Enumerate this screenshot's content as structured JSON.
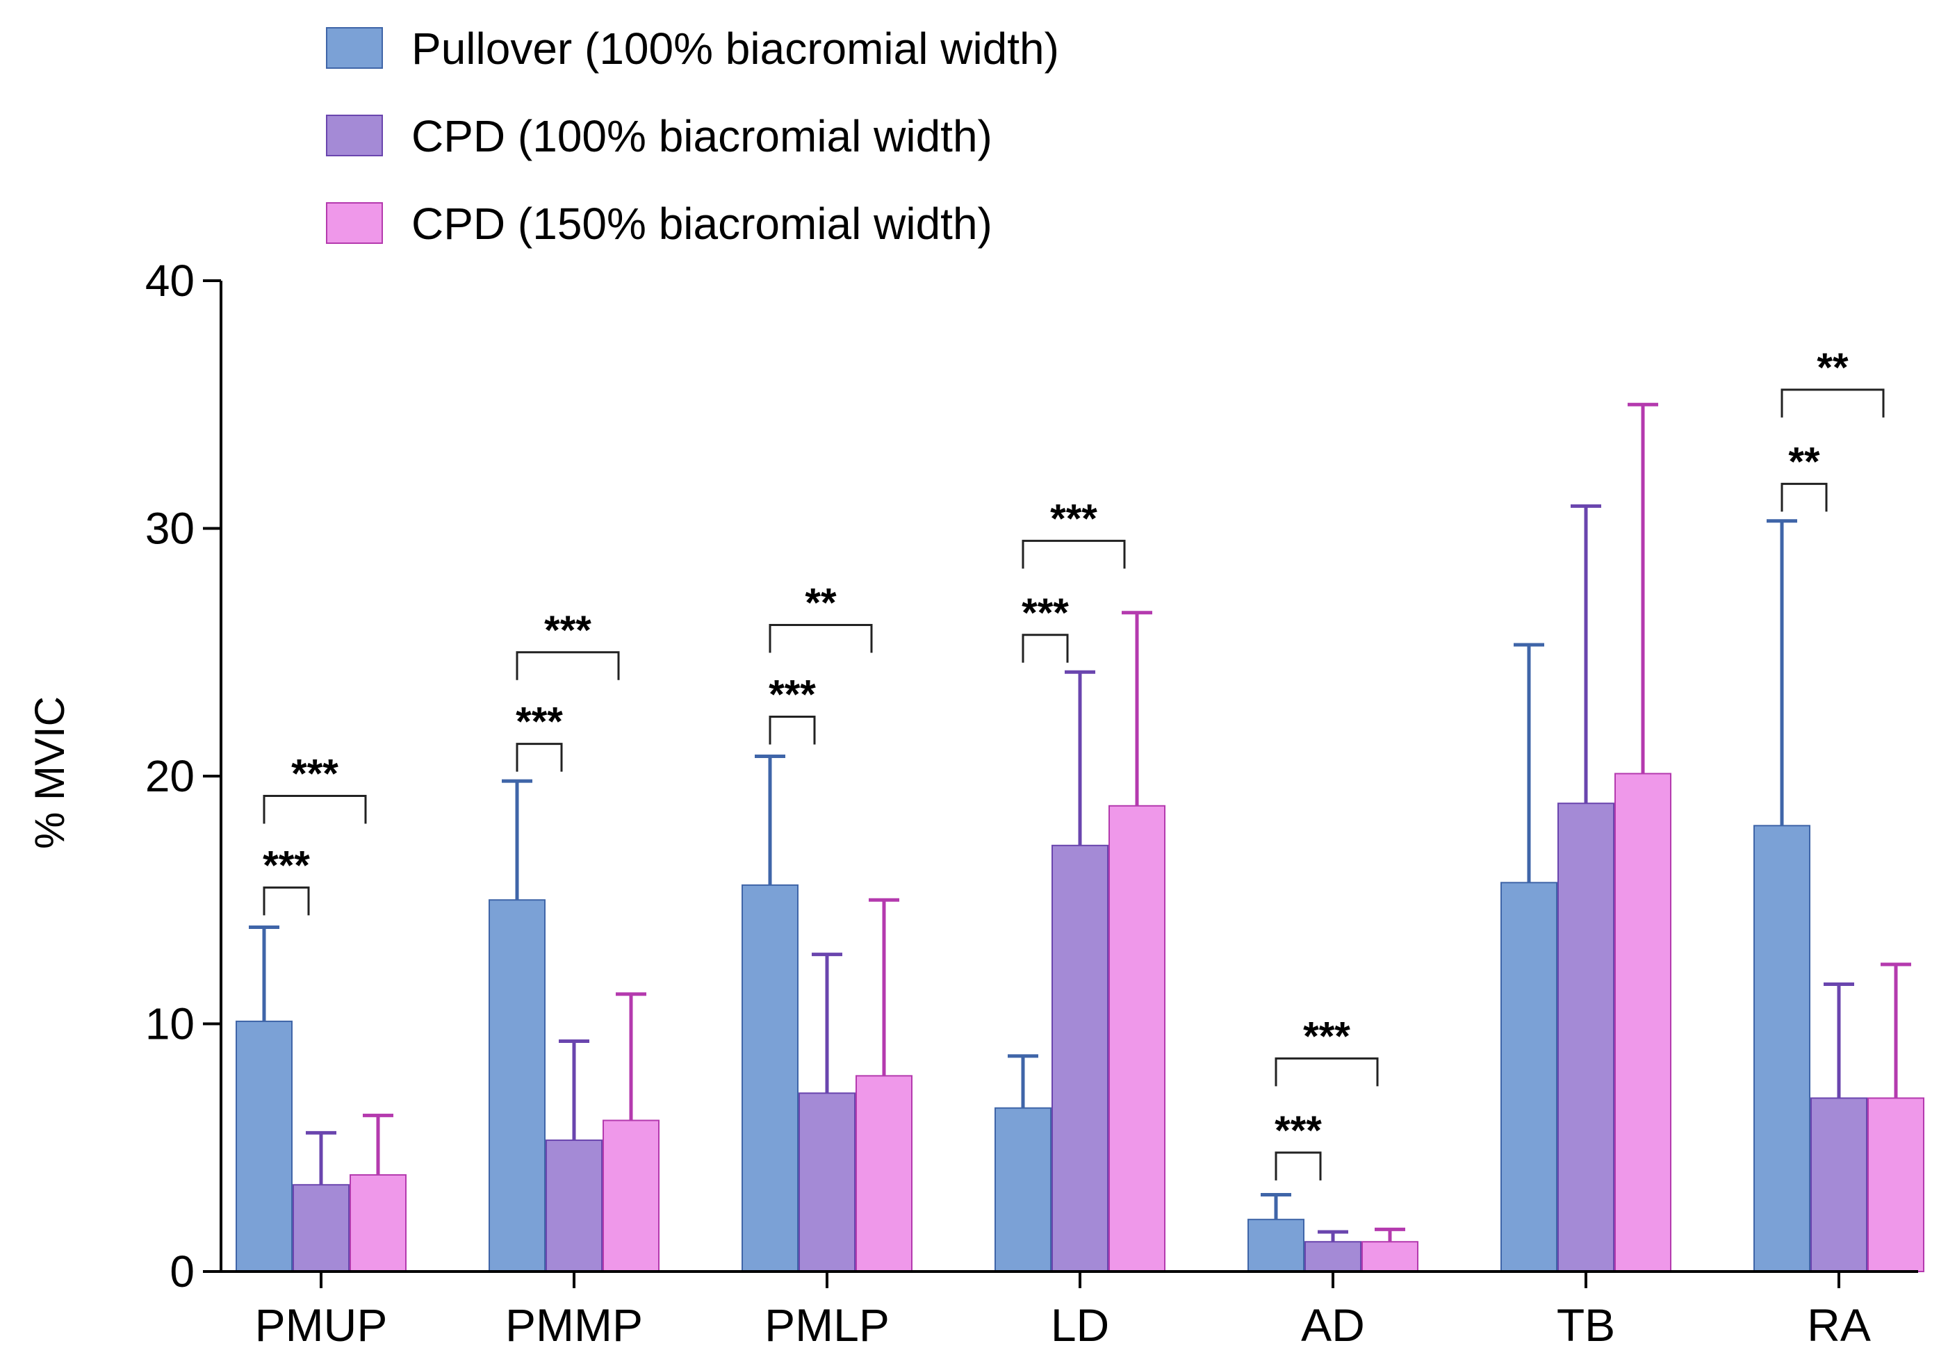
{
  "chart_data": {
    "type": "bar",
    "title": "",
    "xlabel": "",
    "ylabel": "% MVIC",
    "ylim": [
      0,
      40
    ],
    "yticks": [
      "0",
      "10",
      "20",
      "30",
      "40"
    ],
    "grid": false,
    "legend_position": "top-left",
    "categories": [
      "PMUP",
      "PMMP",
      "PMLP",
      "LD",
      "AD",
      "TB",
      "RA"
    ],
    "series": [
      {
        "name": "Pullover (100% biacromial width)",
        "color": "#7ba1d6",
        "edge_color": "#3f65a8",
        "values": [
          10.1,
          15.0,
          15.6,
          6.6,
          2.1,
          15.7,
          18.0
        ],
        "errors": [
          3.8,
          4.8,
          5.2,
          2.1,
          1.0,
          9.6,
          12.3
        ]
      },
      {
        "name": "CPD (100% biacromial width)",
        "color": "#a48ad6",
        "edge_color": "#6a45ae",
        "values": [
          3.5,
          5.3,
          7.2,
          17.2,
          1.2,
          18.9,
          7.0
        ],
        "errors": [
          2.1,
          4.0,
          5.6,
          7.0,
          0.4,
          12.0,
          4.6
        ]
      },
      {
        "name": "CPD (150% biacromial width)",
        "color": "#ef98ea",
        "edge_color": "#b43aae",
        "values": [
          3.9,
          6.1,
          7.9,
          18.8,
          1.2,
          20.1,
          7.0
        ],
        "errors": [
          2.4,
          5.1,
          7.1,
          7.8,
          0.5,
          14.9,
          5.4
        ]
      }
    ],
    "significance": [
      {
        "category": "PMUP",
        "pair": "pullover-cpd100",
        "label": "***",
        "level": 15.5
      },
      {
        "category": "PMUP",
        "pair": "pullover-cpd150",
        "label": "***",
        "level": 19.2
      },
      {
        "category": "PMMP",
        "pair": "pullover-cpd100",
        "label": "***",
        "level": 21.3
      },
      {
        "category": "PMMP",
        "pair": "pullover-cpd150",
        "label": "***",
        "level": 25.0
      },
      {
        "category": "PMLP",
        "pair": "pullover-cpd100",
        "label": "***",
        "level": 22.4
      },
      {
        "category": "PMLP",
        "pair": "pullover-cpd150",
        "label": "**",
        "level": 26.1
      },
      {
        "category": "LD",
        "pair": "pullover-cpd100",
        "label": "***",
        "level": 25.7
      },
      {
        "category": "LD",
        "pair": "pullover-cpd150",
        "label": "***",
        "level": 29.5
      },
      {
        "category": "AD",
        "pair": "pullover-cpd100",
        "label": "***",
        "level": 4.8
      },
      {
        "category": "AD",
        "pair": "pullover-cpd150",
        "label": "***",
        "level": 8.6
      },
      {
        "category": "RA",
        "pair": "pullover-cpd100",
        "label": "**",
        "level": 31.8
      },
      {
        "category": "RA",
        "pair": "pullover-cpd150",
        "label": "**",
        "level": 35.6
      }
    ]
  }
}
